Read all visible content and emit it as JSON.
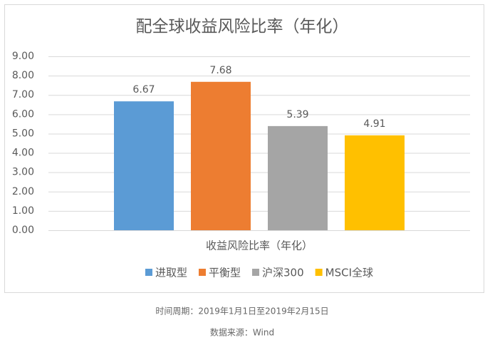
{
  "chart_data": {
    "type": "bar",
    "title": "配全球收益风险比率（年化）",
    "categories": [
      "收益风险比率（年化）"
    ],
    "series": [
      {
        "name": "进取型",
        "color": "#5b9bd5",
        "values": [
          6.67
        ]
      },
      {
        "name": "平衡型",
        "color": "#ed7d31",
        "values": [
          7.68
        ]
      },
      {
        "name": "沪深300",
        "color": "#a5a5a5",
        "values": [
          5.39
        ]
      },
      {
        "name": "MSCI全球",
        "color": "#ffc000",
        "values": [
          4.91
        ]
      }
    ],
    "ylim": [
      0,
      9
    ],
    "yticks": [
      {
        "value": 0,
        "label": "0.00"
      },
      {
        "value": 1,
        "label": "1.00"
      },
      {
        "value": 2,
        "label": "2.00"
      },
      {
        "value": 3,
        "label": "3.00"
      },
      {
        "value": 4,
        "label": "4.00"
      },
      {
        "value": 5,
        "label": "5.00"
      },
      {
        "value": 6,
        "label": "6.00"
      },
      {
        "value": 7,
        "label": "7.00"
      },
      {
        "value": 8,
        "label": "8.00"
      },
      {
        "value": 9,
        "label": "9.00"
      }
    ],
    "grid": true,
    "legend": "bottom",
    "notes": [
      "时间周期：2019年1月1日至2019年2月15日",
      "数据来源：Wind"
    ]
  }
}
